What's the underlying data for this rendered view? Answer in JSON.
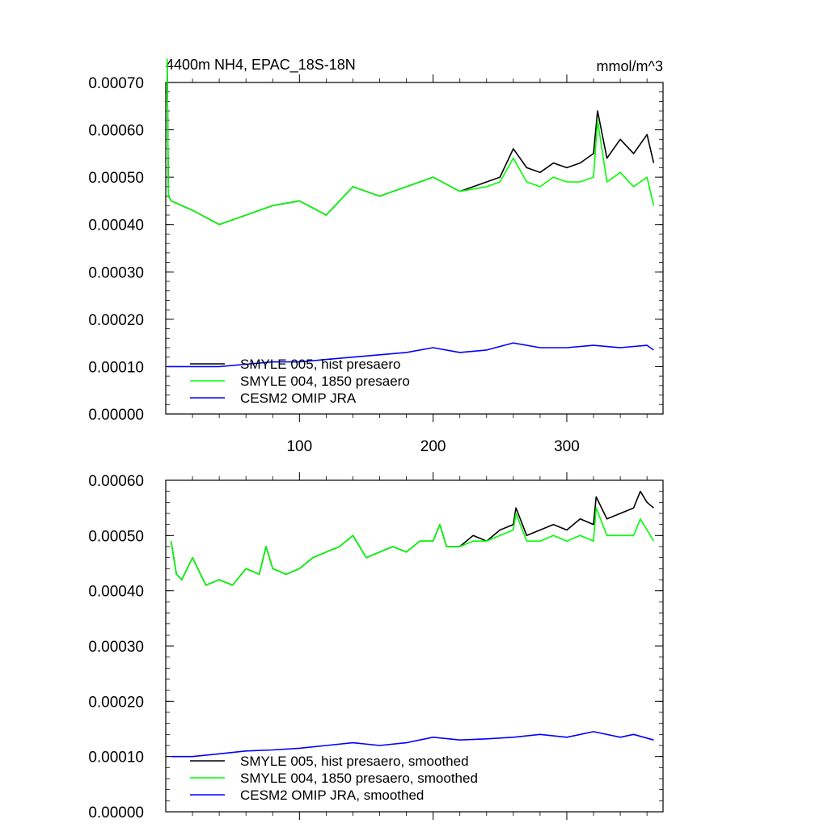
{
  "chart_data": [
    {
      "type": "line",
      "title": "4400m NH4, EPAC_18S-18N",
      "units": "mmol/m^3",
      "xlim": [
        0,
        372
      ],
      "ylim": [
        0,
        0.0007
      ],
      "yticks": [
        0,
        0.0001,
        0.0002,
        0.0003,
        0.0004,
        0.0005,
        0.0006,
        0.0007
      ],
      "yticklabels": [
        "0.00000",
        "0.00010",
        "0.00020",
        "0.00030",
        "0.00040",
        "0.00050",
        "0.00060",
        "0.00070"
      ],
      "xticks": [
        100,
        200,
        300
      ],
      "xticklabels": [
        "100",
        "200",
        "300"
      ],
      "legend_position": "lower-left",
      "series": [
        {
          "name": "SMYLE 005, hist presaero",
          "color": "#000000",
          "x": [
            1,
            2,
            4,
            20,
            40,
            60,
            80,
            100,
            120,
            140,
            160,
            180,
            200,
            220,
            240,
            250,
            260,
            270,
            280,
            290,
            300,
            310,
            320,
            323,
            330,
            340,
            350,
            360,
            365
          ],
          "values": [
            0.00075,
            0.00046,
            0.00045,
            0.00043,
            0.0004,
            0.00042,
            0.00044,
            0.00045,
            0.00042,
            0.00048,
            0.00046,
            0.00048,
            0.0005,
            0.00047,
            0.00049,
            0.0005,
            0.00056,
            0.00052,
            0.00051,
            0.00053,
            0.00052,
            0.00053,
            0.00055,
            0.00064,
            0.00054,
            0.00058,
            0.00055,
            0.00059,
            0.00053
          ]
        },
        {
          "name": "SMYLE 004, 1850 presaero",
          "color": "#00ff00",
          "x": [
            1,
            2,
            4,
            20,
            40,
            60,
            80,
            100,
            120,
            140,
            160,
            180,
            200,
            220,
            240,
            250,
            260,
            270,
            280,
            290,
            300,
            310,
            320,
            323,
            330,
            340,
            350,
            360,
            365
          ],
          "values": [
            0.00075,
            0.00046,
            0.00045,
            0.00043,
            0.0004,
            0.00042,
            0.00044,
            0.00045,
            0.00042,
            0.00048,
            0.00046,
            0.00048,
            0.0005,
            0.00047,
            0.00048,
            0.00049,
            0.00054,
            0.00049,
            0.00048,
            0.0005,
            0.00049,
            0.00049,
            0.0005,
            0.00062,
            0.00049,
            0.00051,
            0.00048,
            0.0005,
            0.00044
          ]
        },
        {
          "name": "CESM2 OMIP JRA",
          "color": "#0000ff",
          "x": [
            1,
            20,
            40,
            60,
            80,
            100,
            120,
            140,
            160,
            180,
            200,
            220,
            240,
            260,
            280,
            300,
            320,
            340,
            360,
            365
          ],
          "values": [
            0.0001,
            0.0001,
            0.0001,
            0.000105,
            0.00011,
            0.00011,
            0.000115,
            0.00012,
            0.000125,
            0.00013,
            0.00014,
            0.00013,
            0.000135,
            0.00015,
            0.00014,
            0.00014,
            0.000145,
            0.00014,
            0.000145,
            0.000135
          ]
        }
      ]
    },
    {
      "type": "line",
      "xlim": [
        0,
        372
      ],
      "ylim": [
        0,
        0.0006
      ],
      "yticks": [
        0,
        0.0001,
        0.0002,
        0.0003,
        0.0004,
        0.0005,
        0.0006
      ],
      "yticklabels": [
        "0.00000",
        "0.00010",
        "0.00020",
        "0.00030",
        "0.00040",
        "0.00050",
        "0.00060"
      ],
      "xticks": [
        100,
        200,
        300
      ],
      "legend_position": "lower-left",
      "series": [
        {
          "name": "SMYLE 005, hist presaero, smoothed",
          "color": "#000000",
          "x": [
            4,
            8,
            12,
            20,
            30,
            40,
            50,
            60,
            70,
            75,
            80,
            90,
            100,
            110,
            120,
            130,
            140,
            150,
            160,
            170,
            180,
            190,
            200,
            205,
            210,
            220,
            230,
            240,
            250,
            260,
            262,
            270,
            280,
            290,
            300,
            310,
            320,
            322,
            330,
            340,
            350,
            355,
            360,
            365
          ],
          "values": [
            0.00049,
            0.00043,
            0.00042,
            0.00046,
            0.00041,
            0.00042,
            0.00041,
            0.00044,
            0.00043,
            0.00048,
            0.00044,
            0.00043,
            0.00044,
            0.00046,
            0.00047,
            0.00048,
            0.0005,
            0.00046,
            0.00047,
            0.00048,
            0.00047,
            0.00049,
            0.00049,
            0.00052,
            0.00048,
            0.00048,
            0.0005,
            0.00049,
            0.00051,
            0.00052,
            0.00055,
            0.0005,
            0.00051,
            0.00052,
            0.00051,
            0.00053,
            0.00052,
            0.00057,
            0.00053,
            0.00054,
            0.00055,
            0.00058,
            0.00056,
            0.00055
          ]
        },
        {
          "name": "SMYLE 004, 1850 presaero, smoothed",
          "color": "#00ff00",
          "x": [
            4,
            8,
            12,
            20,
            30,
            40,
            50,
            60,
            70,
            75,
            80,
            90,
            100,
            110,
            120,
            130,
            140,
            150,
            160,
            170,
            180,
            190,
            200,
            205,
            210,
            220,
            230,
            240,
            250,
            260,
            262,
            270,
            280,
            290,
            300,
            310,
            320,
            322,
            330,
            340,
            350,
            355,
            360,
            365
          ],
          "values": [
            0.00049,
            0.00043,
            0.00042,
            0.00046,
            0.00041,
            0.00042,
            0.00041,
            0.00044,
            0.00043,
            0.00048,
            0.00044,
            0.00043,
            0.00044,
            0.00046,
            0.00047,
            0.00048,
            0.0005,
            0.00046,
            0.00047,
            0.00048,
            0.00047,
            0.00049,
            0.00049,
            0.00052,
            0.00048,
            0.00048,
            0.00049,
            0.00049,
            0.0005,
            0.00051,
            0.00054,
            0.00049,
            0.00049,
            0.0005,
            0.00049,
            0.0005,
            0.00049,
            0.00055,
            0.0005,
            0.0005,
            0.0005,
            0.00053,
            0.00051,
            0.00049
          ]
        },
        {
          "name": "CESM2 OMIP JRA, smoothed",
          "color": "#0000ff",
          "x": [
            4,
            20,
            40,
            60,
            80,
            100,
            120,
            140,
            160,
            180,
            200,
            220,
            240,
            260,
            280,
            300,
            320,
            340,
            350,
            365
          ],
          "values": [
            0.0001,
            0.0001,
            0.000105,
            0.00011,
            0.000112,
            0.000115,
            0.00012,
            0.000125,
            0.00012,
            0.000125,
            0.000135,
            0.00013,
            0.000132,
            0.000135,
            0.00014,
            0.000135,
            0.000145,
            0.000135,
            0.00014,
            0.00013
          ]
        }
      ]
    }
  ]
}
